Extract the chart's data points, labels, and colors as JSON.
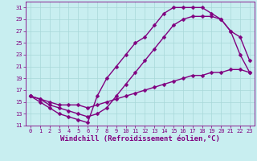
{
  "xlabel": "Windchill (Refroidissement éolien,°C)",
  "background_color": "#c8eef0",
  "line_color": "#800080",
  "grid_color": "#a8d8d8",
  "xlim": [
    -0.5,
    23.5
  ],
  "ylim": [
    11,
    32
  ],
  "xticks": [
    0,
    1,
    2,
    3,
    4,
    5,
    6,
    7,
    8,
    9,
    10,
    11,
    12,
    13,
    14,
    15,
    16,
    17,
    18,
    19,
    20,
    21,
    22,
    23
  ],
  "yticks": [
    11,
    13,
    15,
    17,
    19,
    21,
    23,
    25,
    27,
    29,
    31
  ],
  "curve1_x": [
    0,
    1,
    2,
    3,
    4,
    5,
    6,
    7,
    8,
    9,
    10,
    11,
    12,
    13,
    14,
    15,
    16,
    17,
    18,
    19,
    20,
    21,
    22,
    23
  ],
  "curve1_y": [
    16,
    15,
    14,
    13,
    12.5,
    12,
    11.5,
    16,
    19,
    21,
    23,
    25,
    26,
    28,
    30,
    31,
    31,
    31,
    31,
    30,
    29,
    27,
    23,
    20
  ],
  "curve2_x": [
    0,
    1,
    2,
    3,
    4,
    5,
    6,
    7,
    8,
    9,
    10,
    11,
    12,
    13,
    14,
    15,
    16,
    17,
    18,
    19,
    20,
    21,
    22,
    23
  ],
  "curve2_y": [
    16,
    15.5,
    14.5,
    14,
    13.5,
    13,
    12.5,
    13,
    14,
    16,
    18,
    20,
    22,
    24,
    26,
    28,
    29,
    29.5,
    29.5,
    29.5,
    29,
    27,
    26,
    22
  ],
  "curve3_x": [
    0,
    1,
    2,
    3,
    4,
    5,
    6,
    7,
    8,
    9,
    10,
    11,
    12,
    13,
    14,
    15,
    16,
    17,
    18,
    19,
    20,
    21,
    22,
    23
  ],
  "curve3_y": [
    16,
    15.5,
    15,
    14.5,
    14.5,
    14.5,
    14,
    14.5,
    15,
    15.5,
    16,
    16.5,
    17,
    17.5,
    18,
    18.5,
    19,
    19.5,
    19.5,
    20,
    20,
    20.5,
    20.5,
    20
  ],
  "marker": "D",
  "markersize": 2.5,
  "linewidth": 1.0,
  "tick_fontsize": 5,
  "xlabel_fontsize": 6.5
}
